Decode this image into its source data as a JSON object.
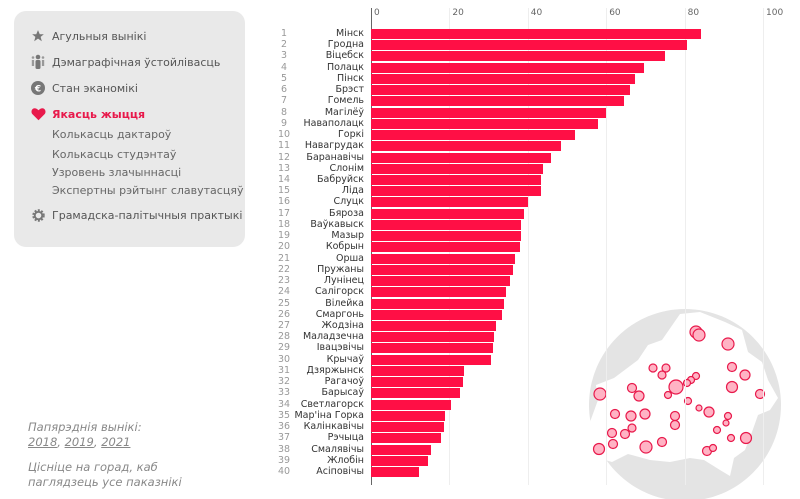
{
  "sidebar": {
    "items": [
      {
        "label": "Агульныя вынікі",
        "icon": "star-icon"
      },
      {
        "label": "Дэмаграфічная ўстойлівасць",
        "icon": "people-icon"
      },
      {
        "label": "Стан эканомікі",
        "icon": "euro-icon"
      },
      {
        "label": "Якасць жыцця",
        "icon": "heart-icon",
        "active": true
      },
      {
        "label": "Грамадска-палітычныя практыкі",
        "icon": "gear-icon"
      }
    ],
    "subitems": [
      "Колькасць дактароў",
      "Колькасць студэнтаў",
      "Узровень злачыннасці",
      "Экспертны рэйтынг славутасцяў"
    ]
  },
  "previous": {
    "label": "Папярэднія вынікі:",
    "links": [
      "2018",
      "2019",
      "2021"
    ]
  },
  "hint": "Цісніце на горад, каб паглядзець усе паказнікі",
  "colors": {
    "accent": "#e8194b",
    "bar": "#ff0f45",
    "panel": "#e9e9e9"
  },
  "chart_data": {
    "type": "bar",
    "orientation": "horizontal",
    "xlim": [
      0,
      100
    ],
    "xticks": [
      "0",
      "20",
      "40",
      "60",
      "80",
      "100"
    ],
    "grid": true,
    "categories": [
      "Мінск",
      "Гродна",
      "Віцебск",
      "Полацк",
      "Пінск",
      "Брэст",
      "Гомель",
      "Магілёў",
      "Наваполацк",
      "Горкі",
      "Навагрудак",
      "Баранавічы",
      "Слонім",
      "Бабруйск",
      "Ліда",
      "Слуцк",
      "Бяроза",
      "Ваўкавыск",
      "Мазыр",
      "Кобрын",
      "Орша",
      "Пружаны",
      "Лунінец",
      "Салігорск",
      "Вілейка",
      "Смаргонь",
      "Жодзіна",
      "Маладзечна",
      "Івацэвічы",
      "Крычаў",
      "Дзяржынск",
      "Рагачоў",
      "Барысаў",
      "Светлагорск",
      "Мар'іна Горка",
      "Калінкавічы",
      "Рэчыца",
      "Смалявічы",
      "Жлобін",
      "Асіповічы"
    ],
    "ranks": [
      "1",
      "2",
      "3",
      "4",
      "5",
      "6",
      "7",
      "8",
      "9",
      "10",
      "11",
      "12",
      "13",
      "14",
      "15",
      "16",
      "17",
      "18",
      "19",
      "20",
      "21",
      "22",
      "23",
      "24",
      "25",
      "26",
      "27",
      "28",
      "29",
      "30",
      "31",
      "32",
      "33",
      "34",
      "35",
      "36",
      "37",
      "38",
      "39",
      "40"
    ],
    "values": [
      84.2,
      80.6,
      75,
      69.6,
      67.3,
      66,
      64.5,
      59.9,
      57.8,
      52,
      48.5,
      46,
      44,
      43.4,
      43.4,
      40,
      39,
      38.3,
      38.3,
      38,
      36.7,
      36.2,
      35.5,
      34.4,
      33.9,
      33.4,
      31.9,
      31.4,
      31.1,
      30.6,
      23.7,
      23.5,
      22.7,
      20.4,
      18.9,
      18.6,
      17.9,
      15.3,
      14.5,
      12.2
    ]
  }
}
